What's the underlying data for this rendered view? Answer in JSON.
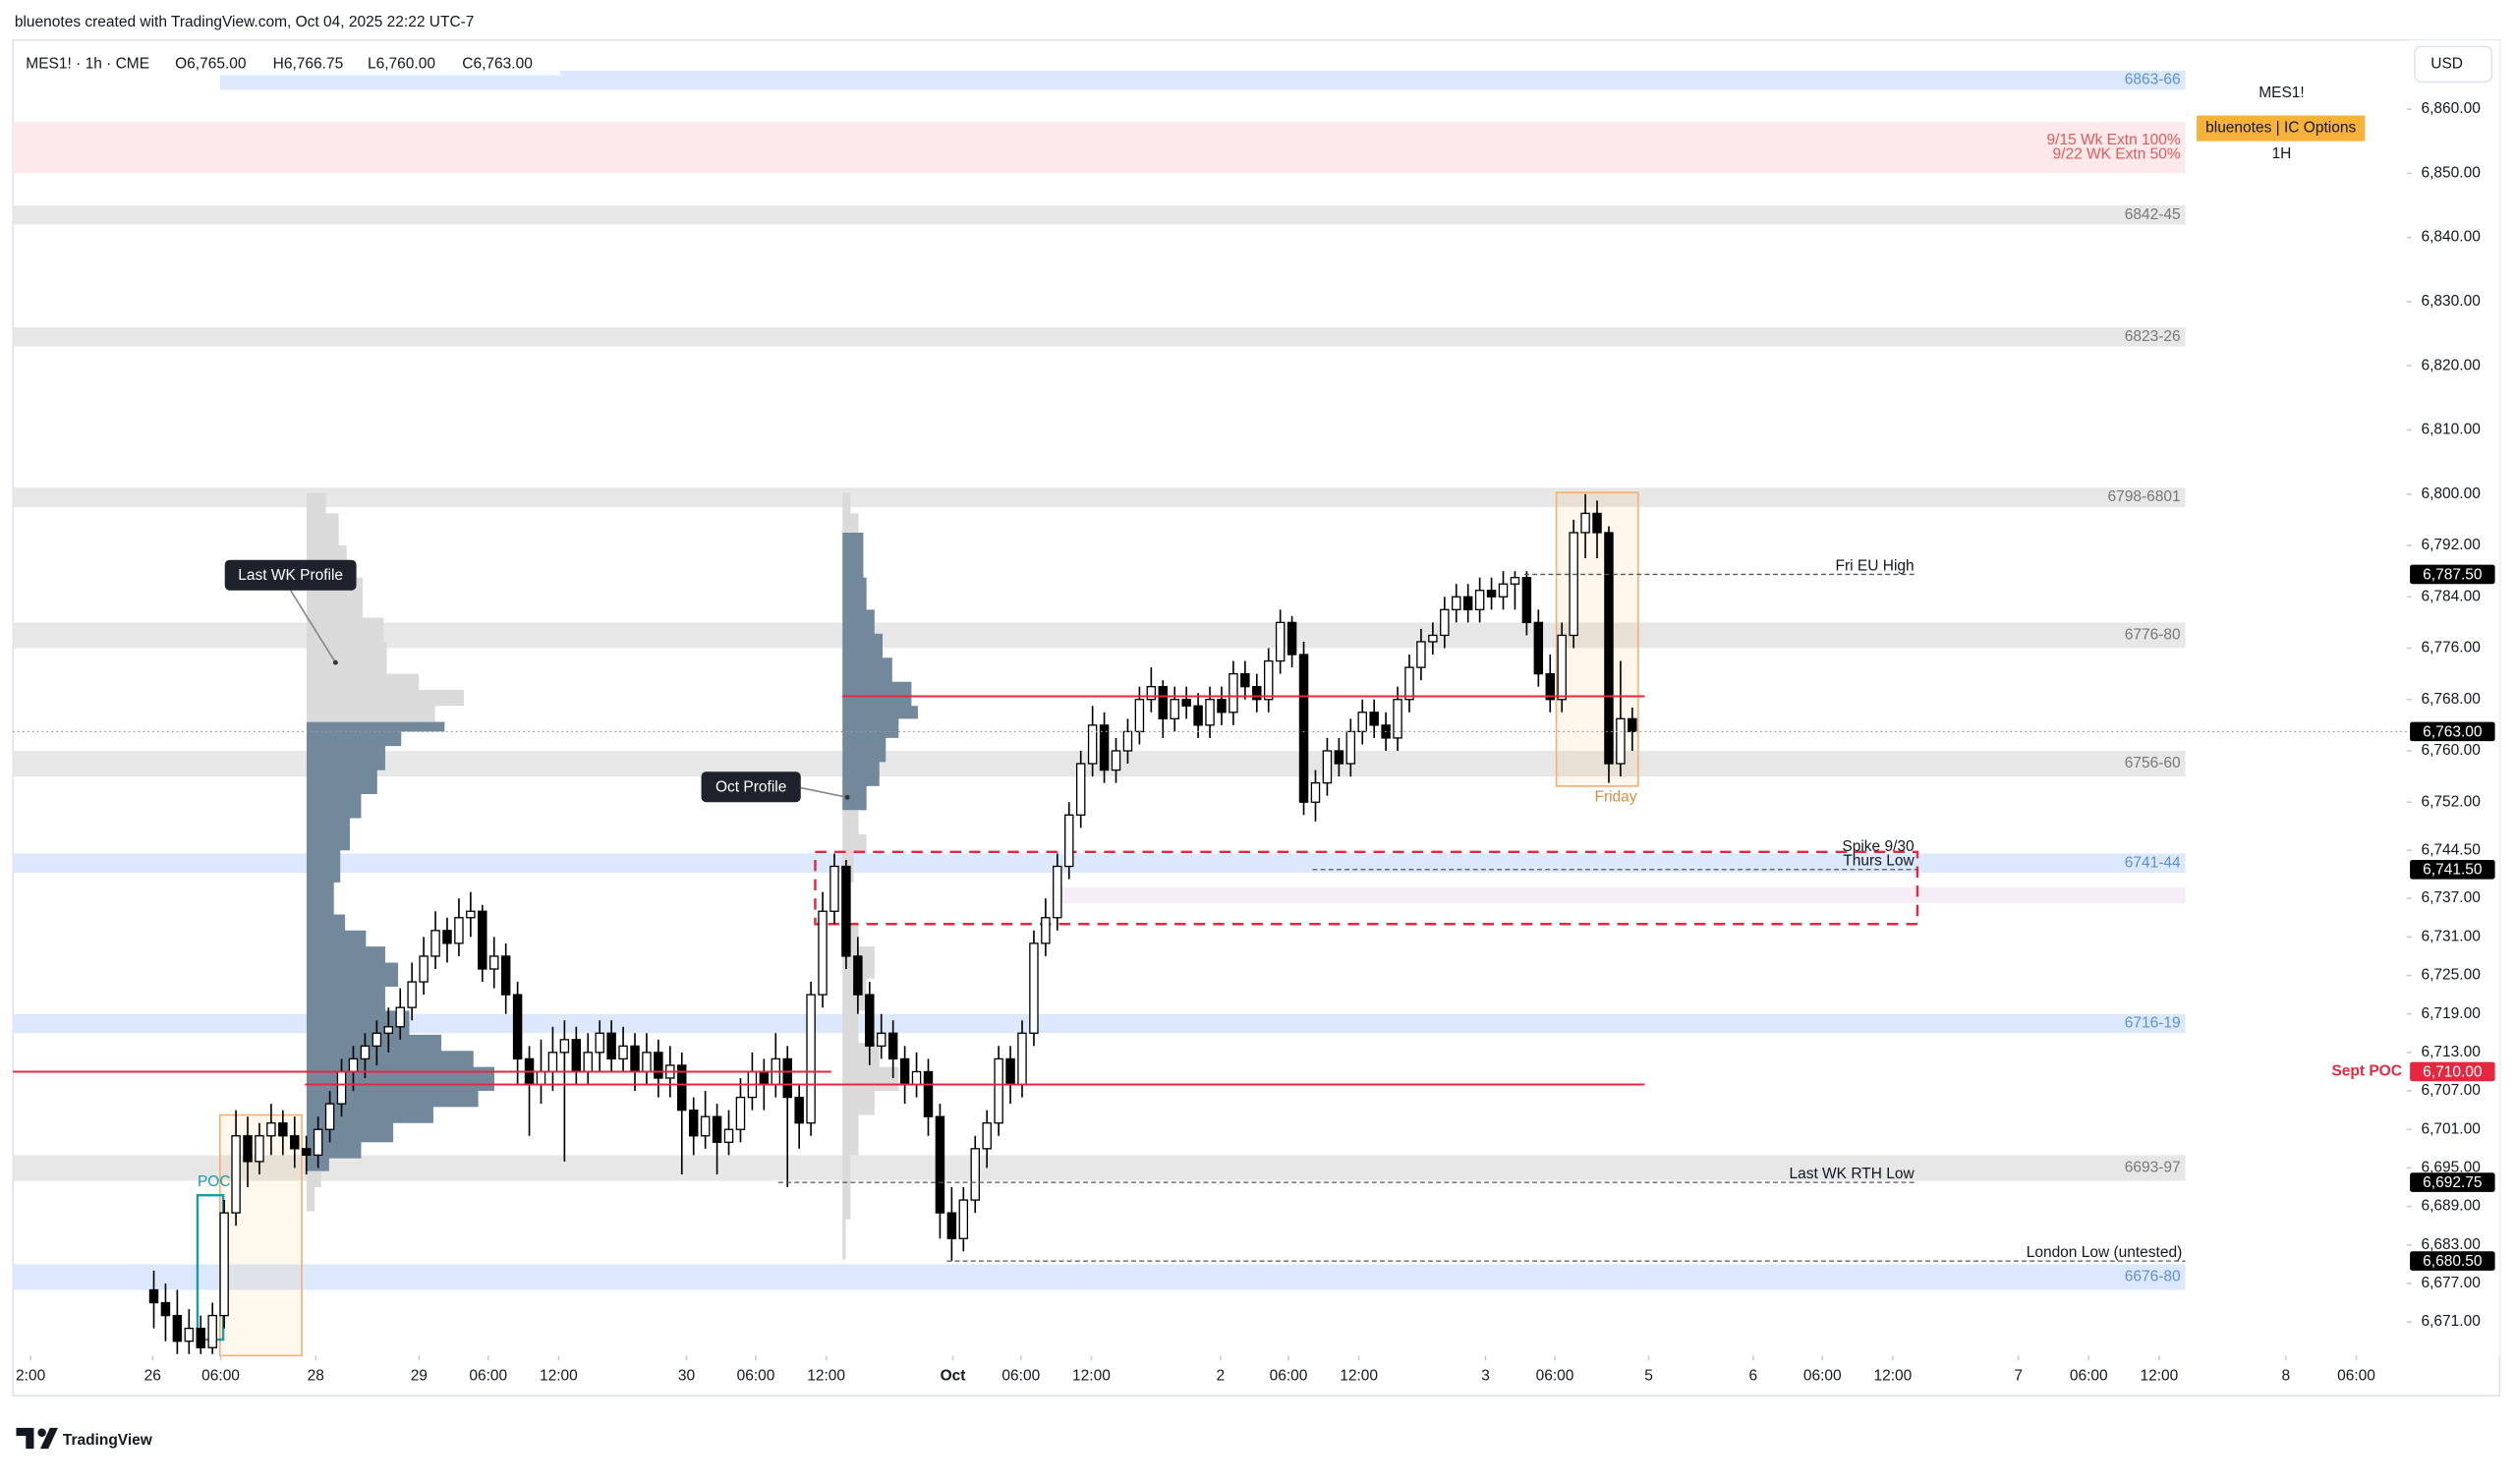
{
  "chart_data": {
    "type": "candlestick",
    "header": "bluenotes created with TradingView.com, Oct 04, 2025 22:22 UTC-7",
    "legend": {
      "title": "MES1! · 1h · CME",
      "open": "O6,765.00",
      "high": "H6,766.75",
      "low": "L6,760.00",
      "close": "C6,763.00"
    },
    "currency": "USD",
    "watermark": {
      "symbol": "MES1!",
      "badge": "bluenotes | IC Options",
      "interval": "1H"
    },
    "brand": "TradingView",
    "up_color": "#ffffff",
    "down_color": "#000000",
    "border_color": "#000000",
    "ylim": [
      6665.75,
      6870.75
    ],
    "yticks": [
      {
        "value": 6860,
        "label": "6,860.00"
      },
      {
        "value": 6850,
        "label": "6,850.00"
      },
      {
        "value": 6840,
        "label": "6,840.00"
      },
      {
        "value": 6830,
        "label": "6,830.00"
      },
      {
        "value": 6820,
        "label": "6,820.00"
      },
      {
        "value": 6810,
        "label": "6,810.00"
      },
      {
        "value": 6800,
        "label": "6,800.00"
      },
      {
        "value": 6792,
        "label": "6,792.00"
      },
      {
        "value": 6784,
        "label": "6,784.00"
      },
      {
        "value": 6776,
        "label": "6,776.00"
      },
      {
        "value": 6768,
        "label": "6,768.00"
      },
      {
        "value": 6760,
        "label": "6,760.00"
      },
      {
        "value": 6752,
        "label": "6,752.00"
      },
      {
        "value": 6744.5,
        "label": "6,744.50"
      },
      {
        "value": 6737,
        "label": "6,737.00"
      },
      {
        "value": 6731,
        "label": "6,731.00"
      },
      {
        "value": 6725,
        "label": "6,725.00"
      },
      {
        "value": 6719,
        "label": "6,719.00"
      },
      {
        "value": 6713,
        "label": "6,713.00"
      },
      {
        "value": 6707,
        "label": "6,707.00"
      },
      {
        "value": 6701,
        "label": "6,701.00"
      },
      {
        "value": 6695,
        "label": "6,695.00"
      },
      {
        "value": 6689,
        "label": "6,689.00"
      },
      {
        "value": 6683,
        "label": "6,683.00"
      },
      {
        "value": 6677,
        "label": "6,677.00"
      },
      {
        "value": 6671,
        "label": "6,671.00"
      }
    ],
    "xlim": [
      -12,
      192
    ],
    "xticks": [
      {
        "value": -10.5,
        "label": "2:00"
      },
      {
        "value": -0.1,
        "label": "26"
      },
      {
        "value": 5.7,
        "label": "06:00"
      },
      {
        "value": 13.8,
        "label": "28"
      },
      {
        "value": 22.6,
        "label": "29"
      },
      {
        "value": 28.5,
        "label": "06:00"
      },
      {
        "value": 34.5,
        "label": "12:00"
      },
      {
        "value": 45.4,
        "label": "30"
      },
      {
        "value": 51.3,
        "label": "06:00"
      },
      {
        "value": 57.3,
        "label": "12:00"
      },
      {
        "value": 68.1,
        "label": "Oct",
        "bold": true
      },
      {
        "value": 73.9,
        "label": "06:00"
      },
      {
        "value": 79.9,
        "label": "12:00"
      },
      {
        "value": 90.9,
        "label": "2"
      },
      {
        "value": 96.7,
        "label": "06:00"
      },
      {
        "value": 102.7,
        "label": "12:00"
      },
      {
        "value": 113.5,
        "label": "3"
      },
      {
        "value": 119.4,
        "label": "06:00"
      },
      {
        "value": 127.4,
        "label": "5"
      },
      {
        "value": 136.3,
        "label": "6"
      },
      {
        "value": 142.2,
        "label": "06:00"
      },
      {
        "value": 148.2,
        "label": "12:00"
      },
      {
        "value": 158.9,
        "label": "7"
      },
      {
        "value": 164.9,
        "label": "06:00"
      },
      {
        "value": 170.9,
        "label": "12:00"
      },
      {
        "value": 181.7,
        "label": "8"
      },
      {
        "value": 187.7,
        "label": "06:00"
      }
    ],
    "candles": [
      [
        6676,
        6679,
        6670,
        6674
      ],
      [
        6674,
        6677,
        6668,
        6672
      ],
      [
        6672,
        6676,
        6666,
        6668
      ],
      [
        6668,
        6673,
        6666,
        6670
      ],
      [
        6670,
        6672,
        6666,
        6667
      ],
      [
        6667,
        6674,
        6666,
        6672
      ],
      [
        6672,
        6690,
        6670,
        6688
      ],
      [
        6688,
        6704,
        6686,
        6700
      ],
      [
        6700,
        6703,
        6692,
        6696
      ],
      [
        6696,
        6702,
        6694,
        6700
      ],
      [
        6700,
        6705,
        6697,
        6702
      ],
      [
        6702,
        6704,
        6697,
        6700
      ],
      [
        6700,
        6703,
        6695,
        6698
      ],
      [
        6698,
        6700,
        6694,
        6697
      ],
      [
        6697,
        6703,
        6695,
        6701
      ],
      [
        6701,
        6707,
        6699,
        6705
      ],
      [
        6705,
        6712,
        6703,
        6710
      ],
      [
        6710,
        6714,
        6707,
        6712
      ],
      [
        6712,
        6716,
        6709,
        6714
      ],
      [
        6714,
        6718,
        6711,
        6716
      ],
      [
        6716,
        6720,
        6713,
        6717
      ],
      [
        6717,
        6723,
        6715,
        6720
      ],
      [
        6720,
        6727,
        6718,
        6724
      ],
      [
        6724,
        6731,
        6722,
        6728
      ],
      [
        6728,
        6735,
        6726,
        6732
      ],
      [
        6732,
        6734,
        6727,
        6730
      ],
      [
        6730,
        6737,
        6728,
        6734
      ],
      [
        6734,
        6738,
        6731,
        6735
      ],
      [
        6735,
        6736,
        6724,
        6726
      ],
      [
        6726,
        6731,
        6723,
        6728
      ],
      [
        6728,
        6730,
        6719,
        6722
      ],
      [
        6722,
        6724,
        6708,
        6712
      ],
      [
        6712,
        6714,
        6700,
        6708
      ],
      [
        6708,
        6715,
        6705,
        6710
      ],
      [
        6710,
        6717,
        6707,
        6713
      ],
      [
        6713,
        6718,
        6696,
        6715
      ],
      [
        6715,
        6717,
        6708,
        6710
      ],
      [
        6710,
        6716,
        6708,
        6713
      ],
      [
        6713,
        6718,
        6710,
        6716
      ],
      [
        6716,
        6718,
        6710,
        6712
      ],
      [
        6712,
        6717,
        6710,
        6714
      ],
      [
        6714,
        6716,
        6707,
        6710
      ],
      [
        6710,
        6716,
        6708,
        6713
      ],
      [
        6713,
        6715,
        6706,
        6709
      ],
      [
        6709,
        6714,
        6706,
        6711
      ],
      [
        6711,
        6713,
        6694,
        6704
      ],
      [
        6704,
        6706,
        6697,
        6700
      ],
      [
        6700,
        6707,
        6698,
        6703
      ],
      [
        6703,
        6705,
        6694,
        6699
      ],
      [
        6699,
        6704,
        6697,
        6701
      ],
      [
        6701,
        6709,
        6699,
        6706
      ],
      [
        6706,
        6713,
        6704,
        6710
      ],
      [
        6710,
        6712,
        6704,
        6708
      ],
      [
        6708,
        6716,
        6706,
        6712
      ],
      [
        6712,
        6714,
        6692,
        6706
      ],
      [
        6706,
        6708,
        6698,
        6702
      ],
      [
        6702,
        6724,
        6700,
        6722
      ],
      [
        6722,
        6738,
        6720,
        6735
      ],
      [
        6735,
        6744,
        6733,
        6742
      ],
      [
        6742,
        6743,
        6726,
        6728
      ],
      [
        6728,
        6731,
        6719,
        6722
      ],
      [
        6722,
        6724,
        6711,
        6714
      ],
      [
        6714,
        6719,
        6712,
        6716
      ],
      [
        6716,
        6718,
        6709,
        6712
      ],
      [
        6712,
        6714,
        6705,
        6708
      ],
      [
        6708,
        6713,
        6706,
        6710
      ],
      [
        6710,
        6712,
        6700,
        6703
      ],
      [
        6703,
        6705,
        6684,
        6688
      ],
      [
        6688,
        6692,
        6680.5,
        6684
      ],
      [
        6684,
        6692,
        6682,
        6690
      ],
      [
        6690,
        6700,
        6688,
        6698
      ],
      [
        6698,
        6704,
        6695,
        6702
      ],
      [
        6702,
        6714,
        6700,
        6712
      ],
      [
        6712,
        6714,
        6705,
        6708
      ],
      [
        6708,
        6718,
        6706,
        6716
      ],
      [
        6716,
        6732,
        6714,
        6730
      ],
      [
        6730,
        6737,
        6728,
        6734
      ],
      [
        6734,
        6744,
        6732,
        6742
      ],
      [
        6742,
        6752,
        6740,
        6750
      ],
      [
        6750,
        6760,
        6748,
        6758
      ],
      [
        6758,
        6767,
        6756,
        6764
      ],
      [
        6764,
        6766,
        6755,
        6757
      ],
      [
        6757,
        6762,
        6755,
        6760
      ],
      [
        6760,
        6765,
        6758,
        6763
      ],
      [
        6763,
        6770,
        6761,
        6768
      ],
      [
        6768,
        6773,
        6766,
        6770
      ],
      [
        6770,
        6771,
        6762,
        6765
      ],
      [
        6765,
        6770,
        6763,
        6768
      ],
      [
        6768,
        6770,
        6765,
        6767
      ],
      [
        6767,
        6769,
        6762,
        6764
      ],
      [
        6764,
        6770,
        6762,
        6768
      ],
      [
        6768,
        6770,
        6764,
        6766
      ],
      [
        6766,
        6774,
        6764,
        6772
      ],
      [
        6772,
        6774,
        6768,
        6770
      ],
      [
        6770,
        6772,
        6766,
        6768
      ],
      [
        6768,
        6776,
        6766,
        6774
      ],
      [
        6774,
        6782,
        6772,
        6780
      ],
      [
        6780,
        6781,
        6773,
        6775
      ],
      [
        6775,
        6777,
        6750,
        6752
      ],
      [
        6752,
        6757,
        6749,
        6755
      ],
      [
        6755,
        6762,
        6753,
        6760
      ],
      [
        6760,
        6762,
        6756,
        6758
      ],
      [
        6758,
        6765,
        6756,
        6763
      ],
      [
        6763,
        6768,
        6761,
        6766
      ],
      [
        6766,
        6768,
        6762,
        6764
      ],
      [
        6764,
        6766,
        6760,
        6762
      ],
      [
        6762,
        6770,
        6760,
        6768
      ],
      [
        6768,
        6775,
        6766,
        6773
      ],
      [
        6773,
        6779,
        6771,
        6777
      ],
      [
        6777,
        6780,
        6775,
        6778
      ],
      [
        6778,
        6784,
        6776,
        6782
      ],
      [
        6782,
        6786,
        6780,
        6784
      ],
      [
        6784,
        6786,
        6780,
        6782
      ],
      [
        6782,
        6787,
        6780,
        6785
      ],
      [
        6785,
        6787,
        6782,
        6784
      ],
      [
        6784,
        6788,
        6782,
        6786
      ],
      [
        6786,
        6788,
        6782,
        6787
      ],
      [
        6787,
        6788,
        6778,
        6780
      ],
      [
        6780,
        6782,
        6770,
        6772
      ],
      [
        6772,
        6775,
        6766,
        6768
      ],
      [
        6768,
        6780,
        6766,
        6778
      ],
      [
        6778,
        6796,
        6776,
        6794
      ],
      [
        6794,
        6800,
        6790,
        6797
      ],
      [
        6797,
        6799,
        6790,
        6794
      ],
      [
        6794,
        6795,
        6755,
        6758
      ],
      [
        6758,
        6774,
        6756,
        6765
      ],
      [
        6765,
        6766.75,
        6760,
        6763
      ]
    ],
    "zones": [
      {
        "labels": [
          "6863-66"
        ],
        "low": 6863,
        "high": 6866,
        "color": "#dce9fc",
        "label_color": "#5b8fd6"
      },
      {
        "labels": [
          "9/15 Wk Extn 100%",
          "9/22 WK Extn 50%"
        ],
        "low": 6850,
        "high": 6858,
        "color": "#fde9ea",
        "label_color": "#e05a5a"
      },
      {
        "labels": [
          "6842-45"
        ],
        "low": 6842,
        "high": 6845,
        "color": "#e7e7e7",
        "label_color": "#777777"
      },
      {
        "labels": [
          "6823-26"
        ],
        "low": 6823,
        "high": 6826,
        "color": "#e7e7e7",
        "label_color": "#777777"
      },
      {
        "labels": [
          "6798-6801"
        ],
        "low": 6798,
        "high": 6801,
        "color": "#e7e7e7",
        "label_color": "#777777"
      },
      {
        "labels": [
          "6776-80"
        ],
        "low": 6776,
        "high": 6780,
        "color": "#e7e7e7",
        "label_color": "#777777"
      },
      {
        "labels": [
          "6756-60"
        ],
        "low": 6756,
        "high": 6760,
        "color": "#e7e7e7",
        "label_color": "#777777"
      },
      {
        "labels": [
          "6741-44"
        ],
        "low": 6741,
        "high": 6744,
        "color": "#dce9fc",
        "label_color": "#5b8fd6"
      },
      {
        "labels": [
          "6716-19"
        ],
        "low": 6716,
        "high": 6719,
        "color": "#dce9fc",
        "label_color": "#5b8fd6"
      },
      {
        "labels": [
          "6693-97"
        ],
        "low": 6693,
        "high": 6697,
        "color": "#e7e7e7",
        "label_color": "#777777"
      },
      {
        "labels": [
          "6676-80"
        ],
        "low": 6676,
        "high": 6680,
        "color": "#dce9fc",
        "label_color": "#5b8fd6"
      }
    ],
    "lines": [
      {
        "labels": [
          "Fri EU High"
        ],
        "value": 6787.5,
        "value_label": "6,787.50",
        "color": "#555555",
        "style": "dashed",
        "box_color": "#000000"
      },
      {
        "labels": [
          "Spike 9/30",
          "Thurs Low"
        ],
        "value": 6741.5,
        "value_label": "6,741.50",
        "color": "#555555",
        "style": "dashed",
        "box_color": "#000000"
      },
      {
        "labels": [
          "Last WK RTH Low"
        ],
        "value": 6692.75,
        "value_label": "6,692.75",
        "color": "#555555",
        "style": "dashed",
        "box_color": "#000000"
      },
      {
        "labels": [
          "London Low (untested)"
        ],
        "value": 6680.5,
        "value_label": "6,680.50",
        "color": "#555555",
        "style": "dashed",
        "box_color": "#000000"
      },
      {
        "labels": [
          "Sept POC"
        ],
        "value": 6710,
        "value_label": "6,710.00",
        "color": "#e5283f",
        "style": "solid",
        "box_color": "#e5283f"
      },
      {
        "value": 6763,
        "value_label": "6,763.00",
        "color": "#999999",
        "style": "dotted",
        "box_color": "#000000"
      }
    ],
    "callouts": [
      "Last WK Profile",
      "Oct Profile"
    ],
    "boxes": [
      "Friday",
      "POC"
    ]
  }
}
